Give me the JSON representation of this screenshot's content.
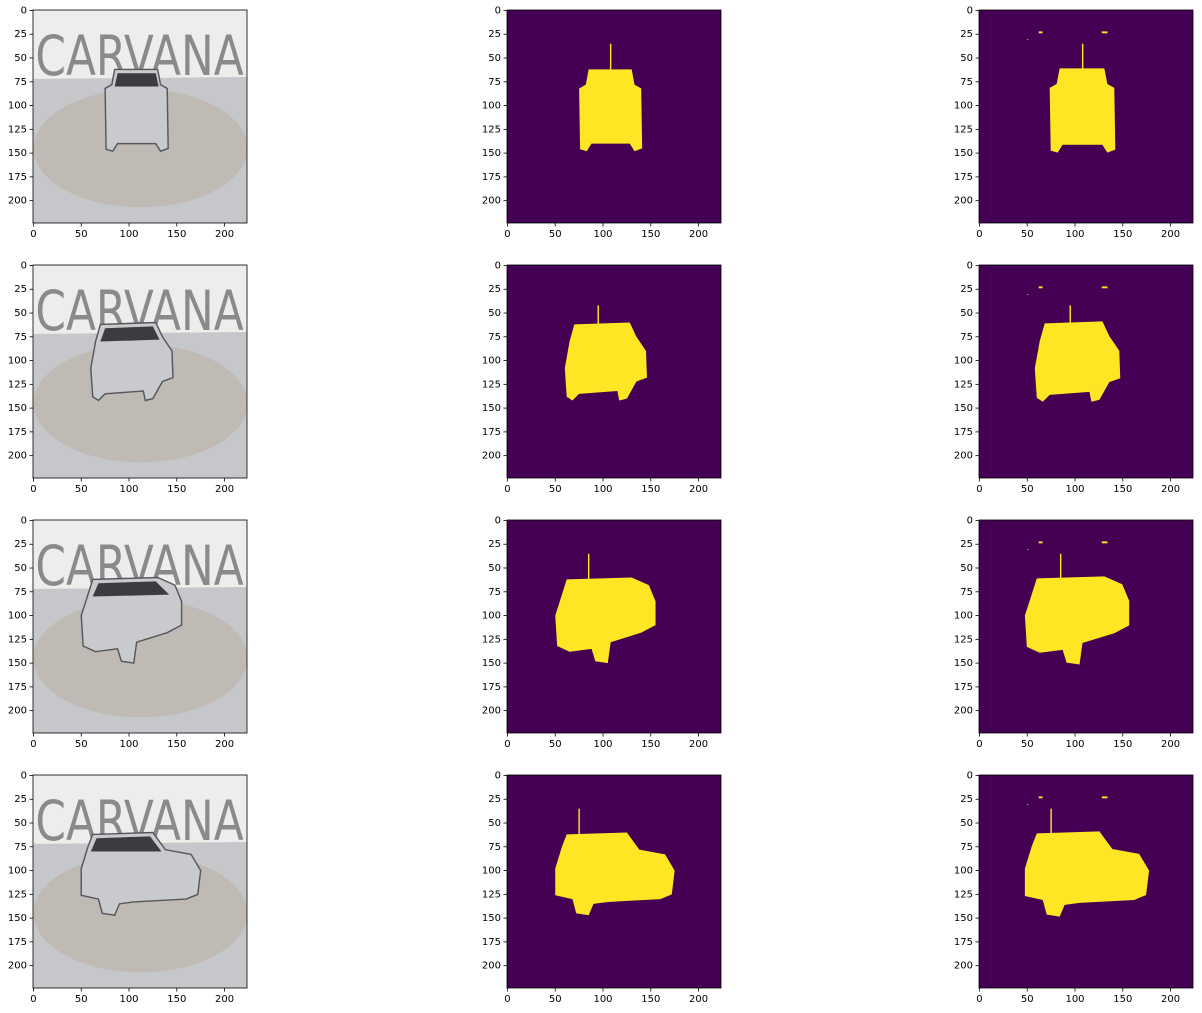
{
  "chart_data": [
    {
      "type": "image",
      "image_text": "CARVANA",
      "xlim": [
        -0.5,
        223.5
      ],
      "ylim": [
        223.5,
        -0.5
      ],
      "xticks": [
        0,
        50,
        100,
        150,
        200
      ],
      "yticks": [
        0,
        25,
        50,
        75,
        100,
        125,
        150,
        175,
        200
      ]
    },
    {
      "type": "mask",
      "xlim": [
        -0.5,
        223.5
      ],
      "ylim": [
        223.5,
        -0.5
      ],
      "xticks": [
        0,
        50,
        100,
        150,
        200
      ],
      "yticks": [
        0,
        25,
        50,
        75,
        100,
        125,
        150,
        175,
        200
      ]
    },
    {
      "type": "prediction",
      "xlim": [
        -0.5,
        223.5
      ],
      "ylim": [
        223.5,
        -0.5
      ],
      "xticks": [
        0,
        50,
        100,
        150,
        200
      ],
      "yticks": [
        0,
        25,
        50,
        75,
        100,
        125,
        150,
        175,
        200
      ]
    },
    {
      "type": "image",
      "image_text": "CARVANA",
      "xlim": [
        -0.5,
        223.5
      ],
      "ylim": [
        223.5,
        -0.5
      ],
      "xticks": [
        0,
        50,
        100,
        150,
        200
      ],
      "yticks": [
        0,
        25,
        50,
        75,
        100,
        125,
        150,
        175,
        200
      ]
    },
    {
      "type": "mask",
      "xlim": [
        -0.5,
        223.5
      ],
      "ylim": [
        223.5,
        -0.5
      ],
      "xticks": [
        0,
        50,
        100,
        150,
        200
      ],
      "yticks": [
        0,
        25,
        50,
        75,
        100,
        125,
        150,
        175,
        200
      ]
    },
    {
      "type": "prediction",
      "xlim": [
        -0.5,
        223.5
      ],
      "ylim": [
        223.5,
        -0.5
      ],
      "xticks": [
        0,
        50,
        100,
        150,
        200
      ],
      "yticks": [
        0,
        25,
        50,
        75,
        100,
        125,
        150,
        175,
        200
      ]
    },
    {
      "type": "image",
      "image_text": "CARVANA",
      "xlim": [
        -0.5,
        223.5
      ],
      "ylim": [
        223.5,
        -0.5
      ],
      "xticks": [
        0,
        50,
        100,
        150,
        200
      ],
      "yticks": [
        0,
        25,
        50,
        75,
        100,
        125,
        150,
        175,
        200
      ]
    },
    {
      "type": "mask",
      "xlim": [
        -0.5,
        223.5
      ],
      "ylim": [
        223.5,
        -0.5
      ],
      "xticks": [
        0,
        50,
        100,
        150,
        200
      ],
      "yticks": [
        0,
        25,
        50,
        75,
        100,
        125,
        150,
        175,
        200
      ]
    },
    {
      "type": "prediction",
      "xlim": [
        -0.5,
        223.5
      ],
      "ylim": [
        223.5,
        -0.5
      ],
      "xticks": [
        0,
        50,
        100,
        150,
        200
      ],
      "yticks": [
        0,
        25,
        50,
        75,
        100,
        125,
        150,
        175,
        200
      ]
    },
    {
      "type": "image",
      "image_text": "CARVANA",
      "xlim": [
        -0.5,
        223.5
      ],
      "ylim": [
        223.5,
        -0.5
      ],
      "xticks": [
        0,
        50,
        100,
        150,
        200
      ],
      "yticks": [
        0,
        25,
        50,
        75,
        100,
        125,
        150,
        175,
        200
      ]
    },
    {
      "type": "mask",
      "xlim": [
        -0.5,
        223.5
      ],
      "ylim": [
        223.5,
        -0.5
      ],
      "xticks": [
        0,
        50,
        100,
        150,
        200
      ],
      "yticks": [
        0,
        25,
        50,
        75,
        100,
        125,
        150,
        175,
        200
      ]
    },
    {
      "type": "prediction",
      "xlim": [
        -0.5,
        223.5
      ],
      "ylim": [
        223.5,
        -0.5
      ],
      "xticks": [
        0,
        50,
        100,
        150,
        200
      ],
      "yticks": [
        0,
        25,
        50,
        75,
        100,
        125,
        150,
        175,
        200
      ]
    }
  ]
}
